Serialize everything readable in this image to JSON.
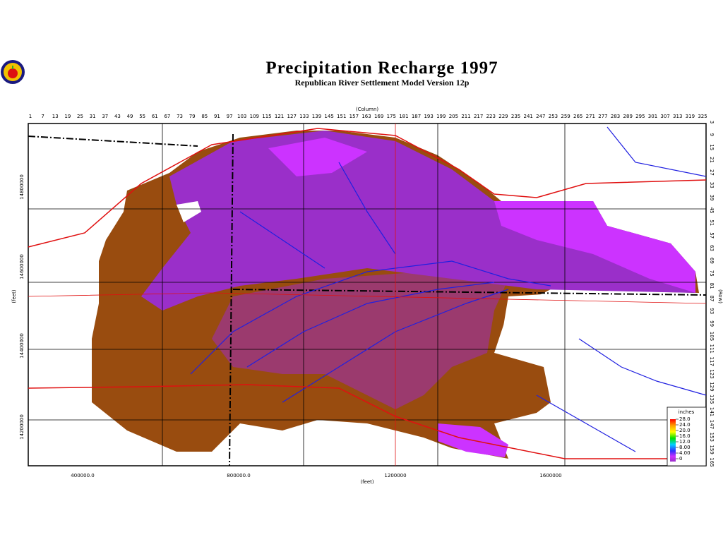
{
  "header": {
    "title": "Precipitation Recharge 1997",
    "subtitle": "Republican River Settlement Model Version 12p"
  },
  "top_axis": {
    "label": "(Column)",
    "ticks": [
      "1",
      "7",
      "13",
      "19",
      "25",
      "31",
      "37",
      "43",
      "49",
      "55",
      "61",
      "67",
      "73",
      "79",
      "85",
      "91",
      "97",
      "103",
      "109",
      "115",
      "121",
      "127",
      "133",
      "139",
      "145",
      "151",
      "157",
      "163",
      "169",
      "175",
      "181",
      "187",
      "193",
      "199",
      "205",
      "211",
      "217",
      "223",
      "229",
      "235",
      "241",
      "247",
      "253",
      "259",
      "265",
      "271",
      "277",
      "283",
      "289",
      "295",
      "301",
      "307",
      "313",
      "319",
      "325"
    ]
  },
  "right_axis": {
    "label": "(Row)",
    "ticks": [
      "3",
      "9",
      "15",
      "21",
      "27",
      "33",
      "39",
      "45",
      "51",
      "57",
      "63",
      "69",
      "75",
      "81",
      "87",
      "93",
      "99",
      "105",
      "111",
      "117",
      "123",
      "129",
      "135",
      "141",
      "147",
      "153",
      "159",
      "165"
    ]
  },
  "bottom_axis": {
    "label": "(feet)",
    "ticks": [
      "400000.0",
      "800000.0",
      "1200000",
      "1600000"
    ]
  },
  "left_axis": {
    "label": "(feet)",
    "ticks": [
      "14800000",
      "14600000",
      "14400000",
      "14200000"
    ]
  },
  "legend": {
    "title": "inches",
    "labels": [
      "28.0",
      "24.0",
      "20.0",
      "16.0",
      "12.0",
      "8.00",
      "4.00",
      "0"
    ]
  }
}
